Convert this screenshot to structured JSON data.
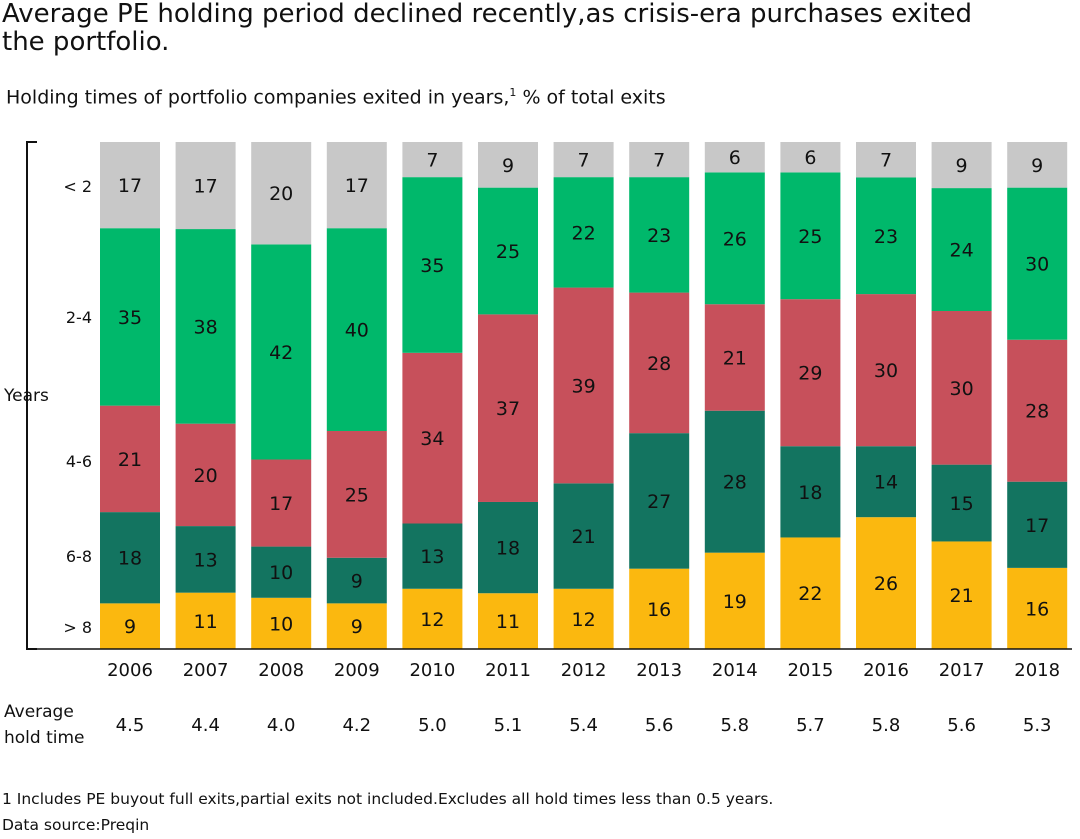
{
  "title": "Average PE holding period declined recently,as crisis-era purchases exited the portfolio.",
  "subtitle": "Holding times of portfolio companies exited in years,",
  "subtitle_sup": "1",
  "subtitle_tail": " % of total exits",
  "avg_label_line1": "Average",
  "avg_label_line2": "hold time",
  "footnote": "1 Includes PE buyout full exits,partial exits not included.Excludes all hold times less than 0.5 years.",
  "source": "Data source:Preqin",
  "colors": {
    "lt2": "#c8c8c8",
    "y2_4": "#00b86b",
    "y4_6": "#c7505b",
    "y6_8": "#137460",
    "gt8": "#fbb80f"
  },
  "chart_data": {
    "type": "bar",
    "stacked": true,
    "categories": [
      "2006",
      "2007",
      "2008",
      "2009",
      "2010",
      "2011",
      "2012",
      "2013",
      "2014",
      "2015",
      "2016",
      "2017",
      "2018"
    ],
    "series": [
      {
        "name": "> 8",
        "values": [
          9,
          11,
          10,
          9,
          12,
          11,
          12,
          16,
          19,
          22,
          26,
          21,
          16
        ]
      },
      {
        "name": "6-8",
        "values": [
          18,
          13,
          10,
          9,
          13,
          18,
          21,
          27,
          28,
          18,
          14,
          15,
          17
        ]
      },
      {
        "name": "4-6",
        "values": [
          21,
          20,
          17,
          25,
          34,
          37,
          39,
          28,
          21,
          29,
          30,
          30,
          28
        ]
      },
      {
        "name": "2-4",
        "values": [
          35,
          38,
          42,
          40,
          35,
          25,
          22,
          23,
          26,
          25,
          23,
          24,
          30
        ]
      },
      {
        "name": "< 2",
        "values": [
          17,
          17,
          20,
          17,
          7,
          9,
          7,
          7,
          6,
          6,
          7,
          9,
          9
        ]
      }
    ],
    "y_axis_label": "Years",
    "average_hold_time": [
      "4.5",
      "4.4",
      "4.0",
      "4.2",
      "5.0",
      "5.1",
      "5.4",
      "5.6",
      "5.8",
      "5.7",
      "5.8",
      "5.6",
      "5.3"
    ]
  }
}
